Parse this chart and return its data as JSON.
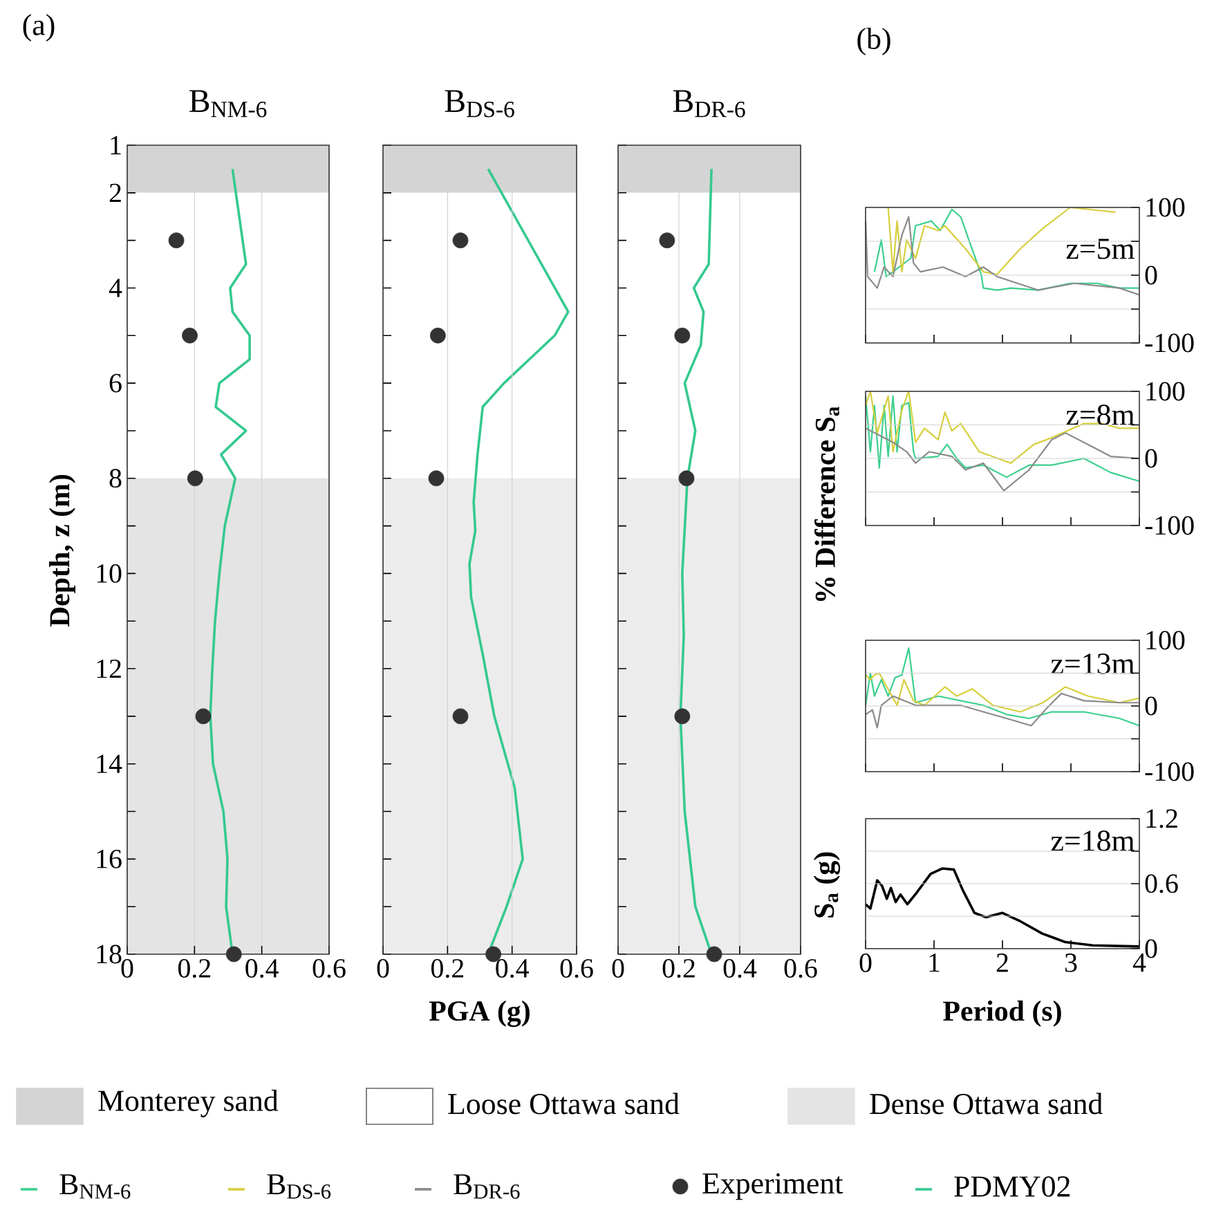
{
  "chart_data": [
    {
      "type": "line",
      "title": "B$_{NM-6}$",
      "ylabel": "Depth, z (m)",
      "annotations": [
        "(a)"
      ],
      "xlim": [
        0,
        0.6
      ],
      "xticks": [
        0,
        0.2,
        0.4,
        0.6
      ],
      "ylim": [
        18,
        1
      ],
      "yticks": [
        1,
        2,
        {
          "value": 3,
          "label": null
        },
        4,
        {
          "value": 5,
          "label": null
        },
        6,
        {
          "value": 7,
          "label": null
        },
        8,
        {
          "value": 9,
          "label": null
        },
        10,
        {
          "value": 11,
          "label": null
        },
        12,
        {
          "value": 13,
          "label": null
        },
        14,
        {
          "value": 15,
          "label": null
        },
        16,
        {
          "value": 17,
          "label": null
        },
        18
      ],
      "grid": "x",
      "legend": "bottom",
      "bands": [
        {
          "axis": "y",
          "from": 1,
          "to": 2,
          "label": "Monterey sand",
          "color": "#d4d4d4"
        },
        {
          "axis": "y",
          "from": 2,
          "to": 8,
          "label": "Loose Ottawa sand",
          "color": "#ffffff"
        },
        {
          "axis": "y",
          "from": 8,
          "to": 18,
          "label": "Dense Ottawa sand",
          "color": "#e4e4e4"
        }
      ],
      "series": [
        {
          "name": "PDMY02",
          "type": "line",
          "color": "#35c98f",
          "x": [
            0.313,
            0.353,
            0.306,
            0.313,
            0.364,
            0.364,
            0.274,
            0.263,
            0.353,
            0.279,
            0.321,
            0.29,
            0.274,
            0.261,
            0.253,
            0.247,
            0.255,
            0.286,
            0.298,
            0.294,
            0.313
          ],
          "values": [
            1.5,
            3.5,
            4,
            4.5,
            5,
            5.5,
            6,
            6.5,
            7,
            7.5,
            8,
            9,
            10,
            11,
            12,
            13,
            14,
            15,
            16,
            17,
            18
          ]
        },
        {
          "name": "Experiment",
          "type": "scatter",
          "marker": "circle",
          "color": "#333333",
          "x": [
            0.146,
            0.186,
            0.202,
            0.226,
            0.317
          ],
          "values": [
            3,
            5,
            8,
            13,
            18
          ]
        }
      ]
    },
    {
      "type": "line",
      "title": "B$_{DS-6}$",
      "xlabel": "PGA (g)",
      "tick_labels": "x",
      "xlim": [
        0,
        0.6
      ],
      "xticks": [
        0,
        0.2,
        0.4,
        0.6
      ],
      "ylim": [
        18,
        1
      ],
      "yticks": [
        1,
        2,
        {
          "value": 3,
          "label": null
        },
        4,
        {
          "value": 5,
          "label": null
        },
        6,
        {
          "value": 7,
          "label": null
        },
        8,
        {
          "value": 9,
          "label": null
        },
        10,
        {
          "value": 11,
          "label": null
        },
        12,
        {
          "value": 13,
          "label": null
        },
        14,
        {
          "value": 15,
          "label": null
        },
        16,
        {
          "value": 17,
          "label": null
        },
        18
      ],
      "grid": "x",
      "bands": [
        {
          "axis": "y",
          "from": 1,
          "to": 2,
          "color": "#d4d4d4"
        },
        {
          "axis": "y",
          "from": 2,
          "to": 8,
          "color": "#ffffff"
        },
        {
          "axis": "y",
          "from": 8,
          "to": 18,
          "color": "#ececec"
        }
      ],
      "series": [
        {
          "type": "line",
          "color": "#35c98f",
          "x": [
            0.326,
            0.574,
            0.532,
            0.375,
            0.309,
            0.293,
            0.281,
            0.286,
            0.268,
            0.273,
            0.309,
            0.345,
            0.408,
            0.433,
            0.383,
            0.326
          ],
          "values": [
            1.5,
            4.5,
            5,
            6,
            6.5,
            7.5,
            8.5,
            9.1,
            9.8,
            10.5,
            11.7,
            13,
            14.5,
            16,
            17,
            18
          ]
        },
        {
          "type": "scatter",
          "marker": "circle",
          "color": "#333333",
          "x": [
            0.24,
            0.17,
            0.165,
            0.24,
            0.342
          ],
          "values": [
            3,
            5,
            8,
            13,
            18
          ]
        }
      ]
    },
    {
      "type": "line",
      "title": "B$_{DR-6}$",
      "tick_labels": "x",
      "xlim": [
        0,
        0.6
      ],
      "xticks": [
        0,
        0.2,
        0.4,
        0.6
      ],
      "ylim": [
        18,
        1
      ],
      "yticks": [
        1,
        2,
        {
          "value": 3,
          "label": null
        },
        4,
        {
          "value": 5,
          "label": null
        },
        6,
        {
          "value": 7,
          "label": null
        },
        8,
        {
          "value": 9,
          "label": null
        },
        10,
        {
          "value": 11,
          "label": null
        },
        12,
        {
          "value": 13,
          "label": null
        },
        14,
        {
          "value": 15,
          "label": null
        },
        16,
        {
          "value": 17,
          "label": null
        },
        18
      ],
      "grid": "x",
      "bands": [
        {
          "axis": "y",
          "from": 1,
          "to": 2,
          "color": "#d4d4d4"
        },
        {
          "axis": "y",
          "from": 2,
          "to": 8,
          "color": "#ffffff"
        },
        {
          "axis": "y",
          "from": 8,
          "to": 18,
          "color": "#ececec"
        }
      ],
      "series": [
        {
          "type": "line",
          "color": "#35c98f",
          "x": [
            0.307,
            0.298,
            0.249,
            0.281,
            0.272,
            0.219,
            0.254,
            0.228,
            0.211,
            0.216,
            0.205,
            0.219,
            0.254,
            0.307
          ],
          "values": [
            1.5,
            3.5,
            4,
            4.5,
            5.2,
            6,
            7,
            8,
            10,
            11.3,
            13,
            15,
            17,
            18
          ]
        },
        {
          "type": "scatter",
          "marker": "circle",
          "color": "#333333",
          "x": [
            0.161,
            0.211,
            0.225,
            0.211,
            0.316
          ],
          "values": [
            3,
            5,
            8,
            13,
            18
          ]
        }
      ]
    },
    {
      "type": "line",
      "annotations": [
        "(b)",
        "z=5m"
      ],
      "tick_labels": "y",
      "legend": "bottom",
      "xlim": [
        0,
        4
      ],
      "xticks": [
        0,
        1,
        2,
        3,
        4
      ],
      "ylim": [
        -100,
        100
      ],
      "yticks": [
        -100,
        {
          "value": -50,
          "label": null
        },
        0,
        {
          "value": 50,
          "label": null
        },
        100
      ],
      "grid": "y",
      "series": [
        {
          "name": "B$_{NM-6}$",
          "color": "#3ccf8e",
          "x": [
            0.13,
            0.23,
            0.3,
            0.4,
            0.66,
            0.73,
            0.96,
            1.09,
            1.26,
            1.39,
            1.53,
            1.69,
            1.72,
            1.92,
            2.12,
            2.52,
            2.99,
            3.38,
            3.71,
            4
          ],
          "values": [
            5,
            52,
            -2,
            5,
            25,
            73,
            80,
            66,
            97,
            86,
            46,
            1,
            -19,
            -22,
            -19,
            -22,
            -12,
            -12,
            -19,
            -19
          ]
        },
        {
          "name": "B$_{DS-6}$",
          "color": "#d6cf3c",
          "x": [
            0.33,
            0.4,
            0.46,
            0.53,
            0.6,
            0.73,
            0.86,
            1.06,
            1.16,
            1.46,
            1.72,
            1.92,
            2.26,
            2.59,
            2.99,
            3.65
          ],
          "values": [
            100,
            5,
            80,
            5,
            52,
            25,
            73,
            66,
            73,
            39,
            5,
            1,
            39,
            69,
            100,
            93
          ]
        },
        {
          "name": "B$_{DR-6}$",
          "color": "#8a8a8a",
          "x": [
            0,
            0.03,
            0.17,
            0.27,
            0.4,
            0.53,
            0.63,
            0.7,
            0.8,
            1.13,
            1.46,
            1.72,
            1.92,
            2.52,
            3.05,
            3.71,
            4
          ],
          "values": [
            80,
            -2,
            -19,
            12,
            -2,
            59,
            86,
            18,
            5,
            12,
            -2,
            12,
            -2,
            -22,
            -12,
            -19,
            -29
          ]
        }
      ]
    },
    {
      "type": "line",
      "ylabel": "% Difference S$_{a}$",
      "annotations": [
        "z=8m"
      ],
      "tick_labels": "y",
      "xlim": [
        0,
        4
      ],
      "xticks": [
        0,
        1,
        2,
        3,
        4
      ],
      "ylim": [
        -100,
        100
      ],
      "yticks": [
        -100,
        {
          "value": -50,
          "label": null
        },
        0,
        {
          "value": 50,
          "label": null
        },
        100
      ],
      "grid": "y",
      "series": [
        {
          "color": "#3ccf8e",
          "x": [
            0,
            0.07,
            0.13,
            0.2,
            0.27,
            0.33,
            0.4,
            0.46,
            0.53,
            0.63,
            0.7,
            0.73,
            1.06,
            1.19,
            1.33,
            1.46,
            1.72,
            2.06,
            2.39,
            2.72,
            3.19,
            3.58,
            4
          ],
          "values": [
            93,
            10,
            79,
            -14,
            79,
            3,
            93,
            10,
            79,
            83,
            10,
            0,
            3,
            21,
            0,
            -14,
            -10,
            -28,
            -10,
            -10,
            0,
            -21,
            -34
          ]
        },
        {
          "color": "#d6cf3c",
          "x": [
            0,
            0.07,
            0.17,
            0.33,
            0.4,
            0.53,
            0.63,
            0.73,
            0.86,
            1.06,
            1.16,
            1.26,
            1.39,
            1.66,
            2.12,
            2.46,
            2.72,
            3.19,
            3.45,
            3.71,
            4
          ],
          "values": [
            79,
            100,
            38,
            93,
            10,
            72,
            100,
            24,
            45,
            28,
            69,
            41,
            52,
            10,
            -7,
            21,
            31,
            52,
            52,
            45,
            45
          ]
        },
        {
          "color": "#8a8a8a",
          "x": [
            0,
            0.4,
            0.6,
            0.73,
            0.93,
            1.26,
            1.46,
            1.72,
            2.02,
            2.39,
            2.72,
            2.92,
            3.32,
            3.58,
            4
          ],
          "values": [
            45,
            24,
            10,
            -7,
            10,
            3,
            -17,
            -7,
            -48,
            -17,
            28,
            38,
            17,
            3,
            0
          ]
        }
      ]
    },
    {
      "type": "line",
      "annotations": [
        "z=13m"
      ],
      "tick_labels": "y",
      "xlim": [
        0,
        4
      ],
      "xticks": [
        0,
        1,
        2,
        3,
        4
      ],
      "ylim": [
        -100,
        100
      ],
      "yticks": [
        -100,
        {
          "value": -50,
          "label": null
        },
        0,
        {
          "value": 50,
          "label": null
        },
        100
      ],
      "grid": "y",
      "series": [
        {
          "color": "#3ccf8e",
          "x": [
            0,
            0.07,
            0.13,
            0.23,
            0.33,
            0.43,
            0.53,
            0.63,
            0.73,
            1.06,
            1.39,
            1.72,
            2.06,
            2.39,
            2.72,
            3.19,
            3.71,
            4
          ],
          "values": [
            1,
            50,
            15,
            40,
            15,
            43,
            47,
            88,
            5,
            15,
            8,
            1,
            -13,
            -19,
            -9,
            -9,
            -19,
            -30
          ]
        },
        {
          "color": "#d6cf3c",
          "x": [
            0,
            0.07,
            0.13,
            0.2,
            0.46,
            0.56,
            0.7,
            0.86,
            1.16,
            1.33,
            1.56,
            1.86,
            2.26,
            2.59,
            2.92,
            3.25,
            3.71,
            4
          ],
          "values": [
            47,
            40,
            47,
            50,
            1,
            40,
            8,
            1,
            29,
            15,
            26,
            1,
            -9,
            5,
            29,
            15,
            5,
            12
          ]
        },
        {
          "color": "#8a8a8a",
          "x": [
            0,
            0.1,
            0.17,
            0.23,
            0.4,
            0.73,
            1.39,
            1.72,
            2.06,
            2.42,
            2.66,
            2.86,
            3.19,
            3.71,
            4
          ],
          "values": [
            -13,
            -6,
            -33,
            1,
            15,
            1,
            1,
            -9,
            -19,
            -30,
            -2,
            19,
            8,
            5,
            5
          ]
        }
      ]
    },
    {
      "type": "line",
      "xlabel": "Period (s)",
      "ylabel": "S$_{a}$ (g)",
      "annotations": [
        "z=18m"
      ],
      "xlim": [
        0,
        4
      ],
      "xticks": [
        0,
        1,
        2,
        3,
        4
      ],
      "ylim": [
        0,
        1.2
      ],
      "yticks": [
        0,
        {
          "value": 0.3,
          "label": null
        },
        0.6,
        {
          "value": 0.9,
          "label": null
        },
        1.2
      ],
      "grid": "y",
      "series": [
        {
          "color": "#000000",
          "x": [
            0,
            0.07,
            0.17,
            0.24,
            0.31,
            0.37,
            0.44,
            0.51,
            0.61,
            0.75,
            0.95,
            1.12,
            1.29,
            1.42,
            1.59,
            1.76,
            2.0,
            2.24,
            2.58,
            2.92,
            3.32,
            4
          ],
          "values": [
            0.41,
            0.37,
            0.63,
            0.58,
            0.46,
            0.56,
            0.43,
            0.5,
            0.41,
            0.52,
            0.69,
            0.74,
            0.73,
            0.54,
            0.33,
            0.29,
            0.33,
            0.26,
            0.14,
            0.06,
            0.03,
            0.02
          ]
        }
      ]
    }
  ]
}
